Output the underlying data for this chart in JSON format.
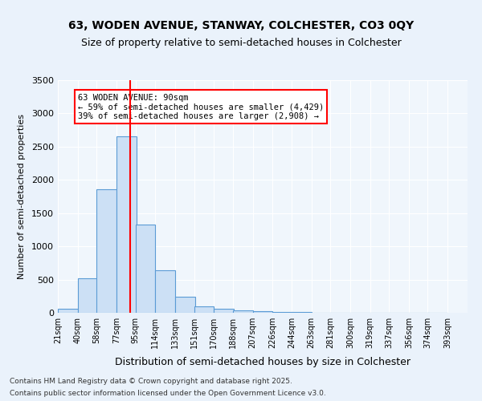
{
  "title1": "63, WODEN AVENUE, STANWAY, COLCHESTER, CO3 0QY",
  "title2": "Size of property relative to semi-detached houses in Colchester",
  "xlabel": "Distribution of semi-detached houses by size in Colchester",
  "ylabel": "Number of semi-detached properties",
  "bins": [
    21,
    40,
    58,
    77,
    95,
    114,
    133,
    151,
    170,
    188,
    207,
    226,
    244,
    263,
    281,
    300,
    319,
    337,
    356,
    374,
    393
  ],
  "bin_labels": [
    "21sqm",
    "40sqm",
    "58sqm",
    "77sqm",
    "95sqm",
    "114sqm",
    "133sqm",
    "151sqm",
    "170sqm",
    "188sqm",
    "207sqm",
    "226sqm",
    "244sqm",
    "263sqm",
    "281sqm",
    "300sqm",
    "319sqm",
    "337sqm",
    "356sqm",
    "374sqm",
    "393sqm"
  ],
  "values": [
    60,
    525,
    1855,
    2650,
    1330,
    645,
    240,
    95,
    60,
    40,
    25,
    15,
    8,
    4,
    2,
    1,
    0,
    0,
    0,
    0
  ],
  "bar_color": "#cce0f5",
  "bar_edge_color": "#5b9bd5",
  "red_line_x": 4,
  "red_line_value": 90,
  "annotation_title": "63 WODEN AVENUE: 90sqm",
  "annotation_line1": "← 59% of semi-detached houses are smaller (4,429)",
  "annotation_line2": "39% of semi-detached houses are larger (2,908) →",
  "ylim": [
    0,
    3500
  ],
  "yticks": [
    0,
    500,
    1000,
    1500,
    2000,
    2500,
    3000,
    3500
  ],
  "footer1": "Contains HM Land Registry data © Crown copyright and database right 2025.",
  "footer2": "Contains public sector information licensed under the Open Government Licence v3.0.",
  "bg_color": "#eaf2fb",
  "plot_bg_color": "#f0f6fc"
}
